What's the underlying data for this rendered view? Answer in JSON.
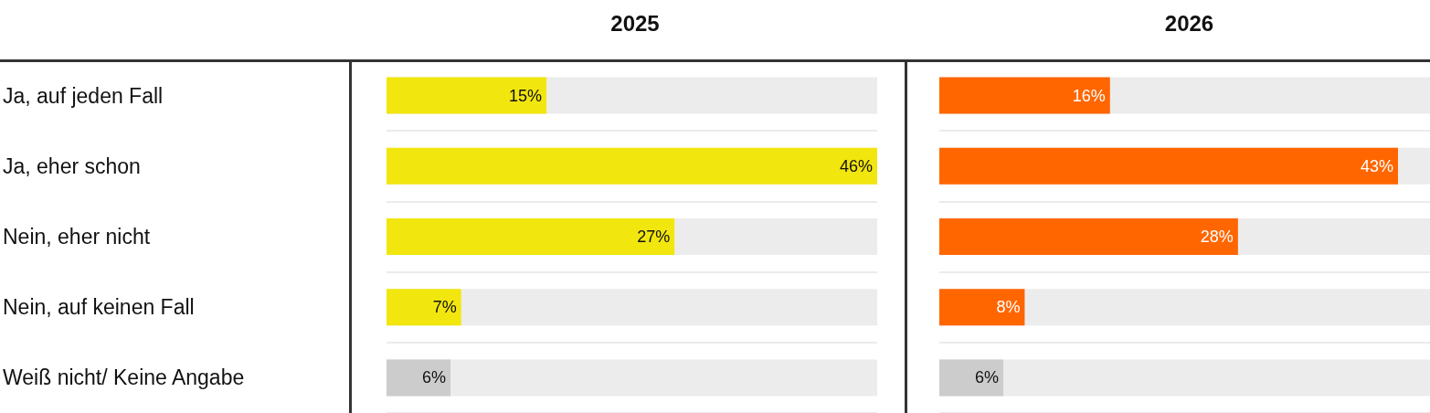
{
  "chart_data": [
    {
      "type": "bar",
      "orientation": "horizontal",
      "title": "2025",
      "categories": [
        "Ja, auf jeden Fall",
        "Ja, eher schon",
        "Nein, eher nicht",
        "Nein, auf keinen Fall",
        "Weiß nicht/ Keine Angabe"
      ],
      "values": [
        15,
        46,
        27,
        7,
        6
      ],
      "colors": [
        "#f2e60f",
        "#f2e60f",
        "#f2e60f",
        "#f2e60f",
        "#cccccc"
      ],
      "value_labels": [
        "15%",
        "46%",
        "27%",
        "7%",
        "6%"
      ],
      "xlim": [
        0,
        46
      ],
      "grid": "y",
      "tick_labels": "y"
    },
    {
      "type": "bar",
      "orientation": "horizontal",
      "title": "2026",
      "categories": [
        null,
        null,
        null,
        null,
        null
      ],
      "values": [
        16,
        43,
        28,
        8,
        6
      ],
      "colors": [
        "#ff6600",
        "#ff6600",
        "#ff6600",
        "#ff6600",
        "#cccccc"
      ],
      "value_labels": [
        "16%",
        "43%",
        "28%",
        "8%",
        "6%"
      ],
      "xlim": [
        0,
        46
      ],
      "grid": "y",
      "tick_labels": false
    }
  ]
}
